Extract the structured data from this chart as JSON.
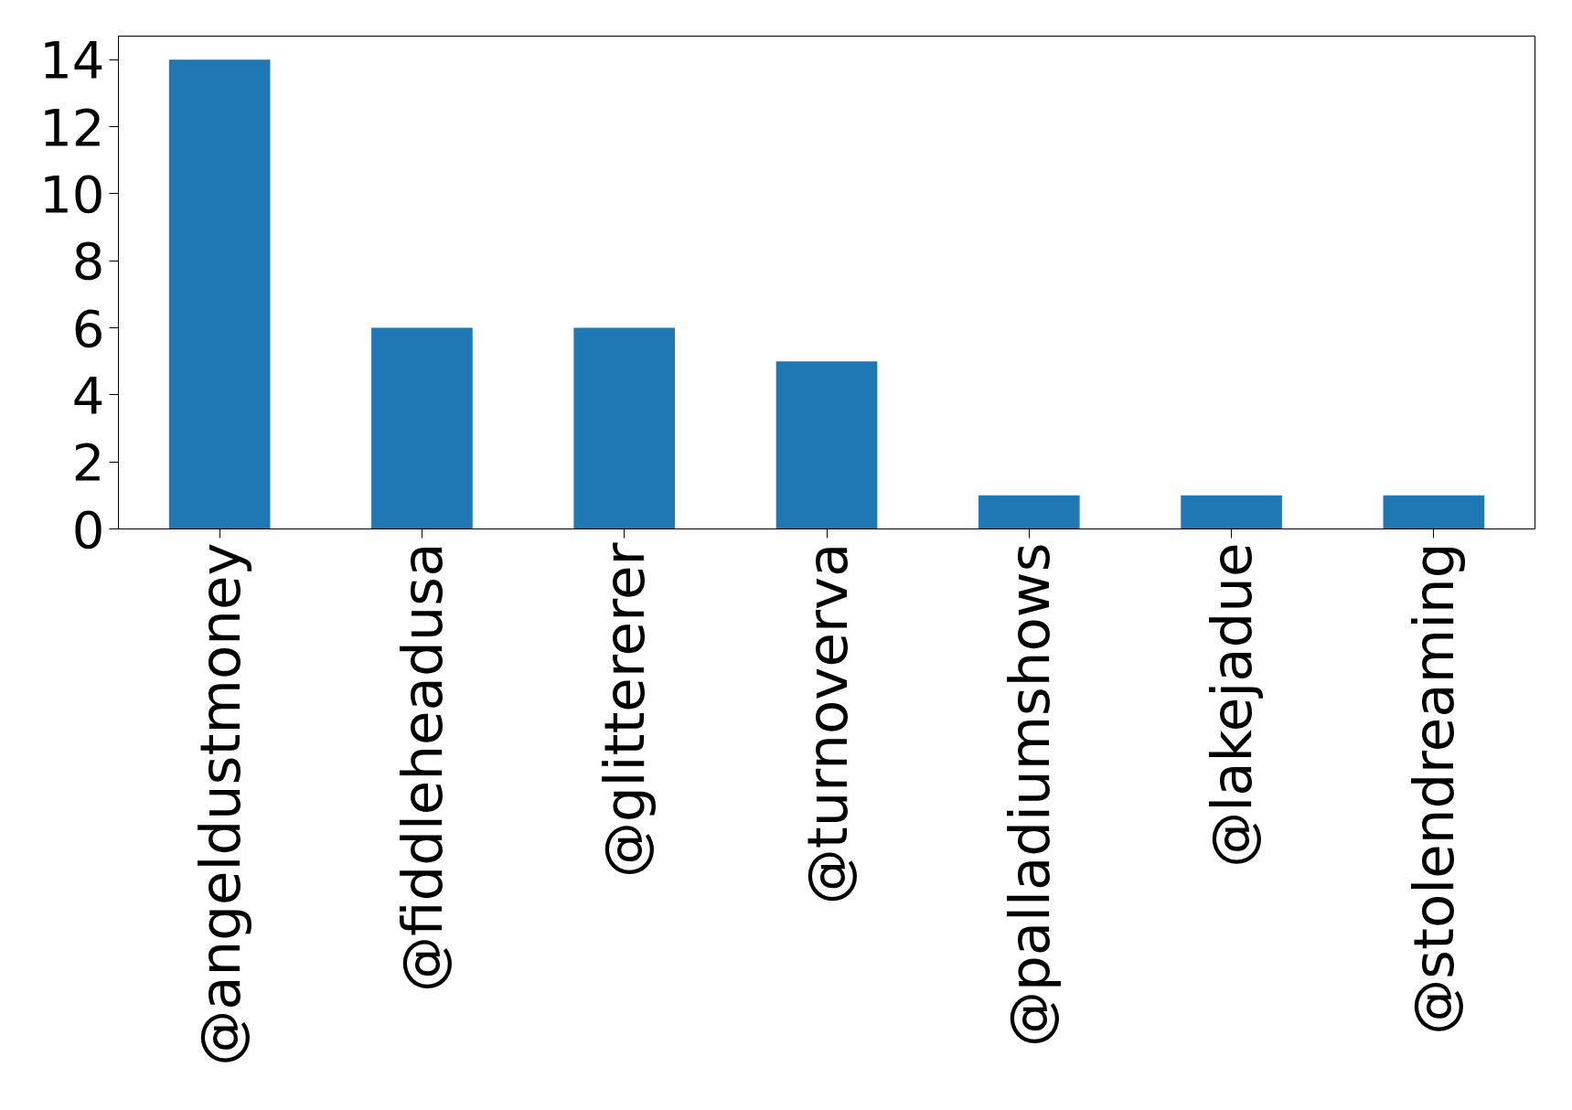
{
  "chart_data": {
    "type": "bar",
    "categories": [
      "@angeldustmoney",
      "@fiddleheadusa",
      "@glittererer",
      "@turnoverva",
      "@palladiumshows",
      "@lakejadue",
      "@stolendreaming"
    ],
    "values": [
      14,
      6,
      6,
      5,
      1,
      1,
      1
    ],
    "color": "#1f77b4",
    "ylim": [
      0,
      14.7
    ],
    "yticks": [
      0,
      2,
      4,
      6,
      8,
      10,
      12,
      14
    ],
    "grid": false
  }
}
